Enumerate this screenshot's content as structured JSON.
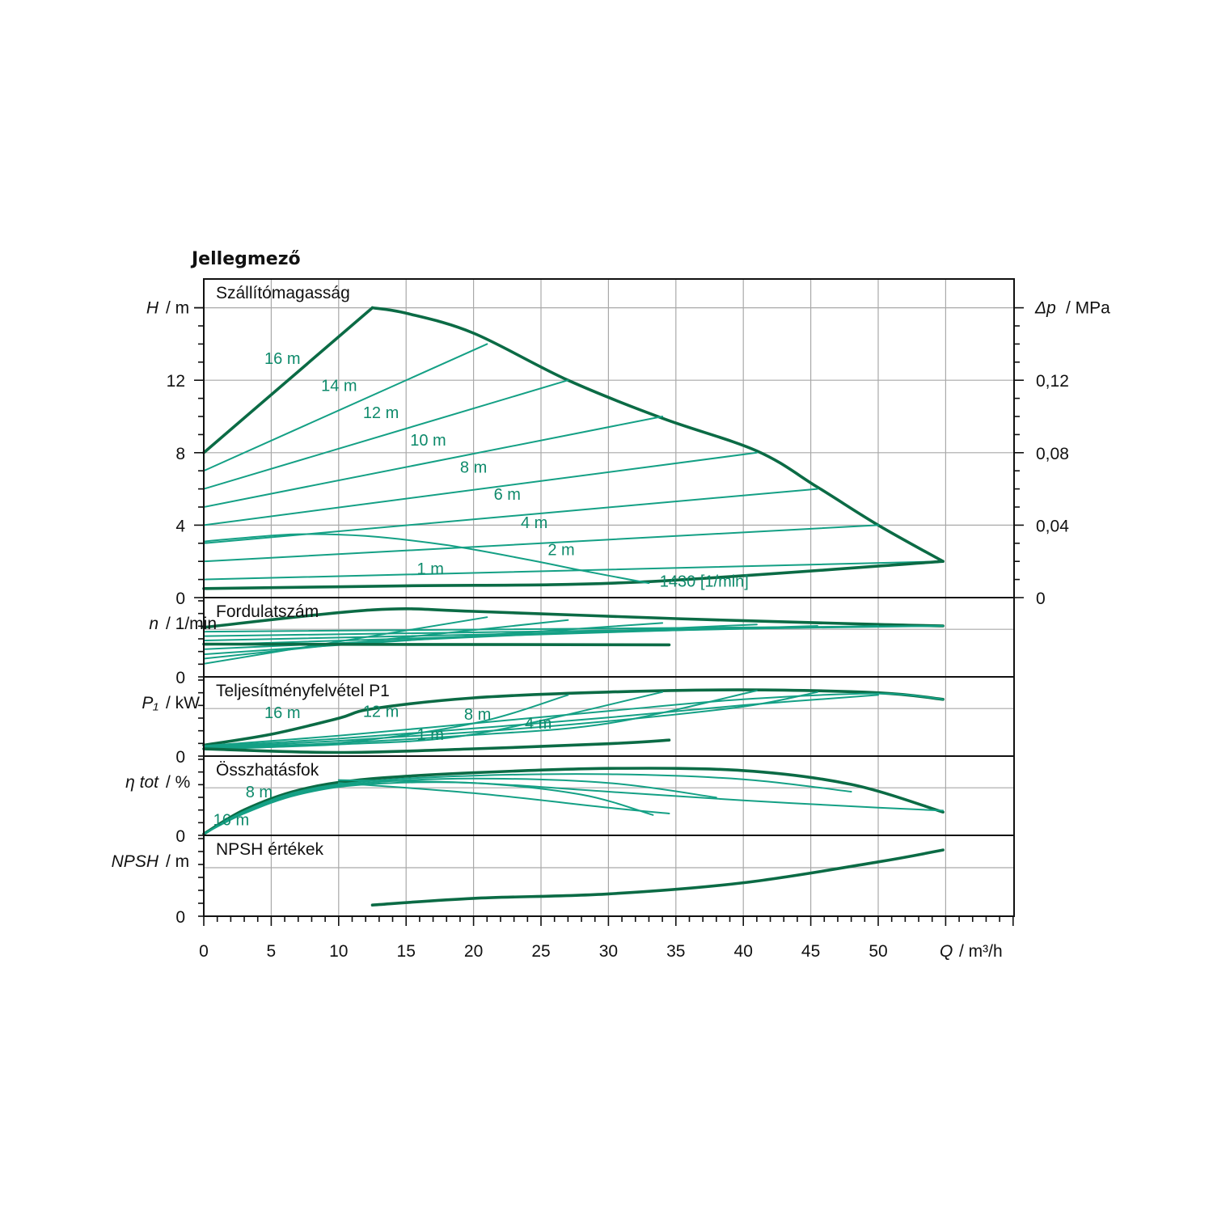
{
  "title": "Jellegmező",
  "colors": {
    "curve_thin": "#14a085",
    "curve_thick": "#0b6b45",
    "label": "#0e8a6b",
    "grid": "#a9a9a9"
  },
  "x_axis": {
    "label_var": "Q",
    "label_unit": "/ m³/h",
    "ticks": [
      "0",
      "5",
      "10",
      "15",
      "20",
      "25",
      "30",
      "35",
      "40",
      "45",
      "50"
    ],
    "xlim": [
      0,
      60
    ]
  },
  "chart_data": [
    {
      "type": "line",
      "title": "Szállítómagasság",
      "ylabel_var": "H",
      "ylabel_unit": "/ m",
      "y2label_var": "Δp",
      "y2label_unit": "/ MPa",
      "ylim": [
        0,
        17
      ],
      "y_ticks": [
        "0",
        "4",
        "8",
        "12"
      ],
      "y_tick_values": [
        0,
        4,
        8,
        12
      ],
      "y2_ticks": [
        "0",
        "0,04",
        "0,08",
        "0,12"
      ],
      "grid": true,
      "series": [
        {
          "name": "16 m",
          "style": "thick",
          "x": [
            0,
            12.5
          ],
          "y": [
            8,
            16
          ]
        },
        {
          "style": "thick",
          "x": [
            12.5,
            15,
            20,
            27,
            34,
            41,
            45.5,
            50,
            54.8
          ],
          "y": [
            16,
            15.7,
            14.6,
            12.0,
            9.9,
            8.1,
            6.1,
            4.0,
            2.0
          ]
        },
        {
          "name": "14 m",
          "style": "thin",
          "x": [
            0,
            21
          ],
          "y": [
            7,
            14
          ]
        },
        {
          "name": "12 m",
          "style": "thin",
          "x": [
            0,
            27
          ],
          "y": [
            6,
            12
          ]
        },
        {
          "name": "10 m",
          "style": "thin",
          "x": [
            0,
            34
          ],
          "y": [
            5,
            10
          ]
        },
        {
          "name": "8 m",
          "style": "thin",
          "x": [
            0,
            41
          ],
          "y": [
            4,
            8
          ]
        },
        {
          "name": "6 m",
          "style": "thin",
          "x": [
            0,
            45.5
          ],
          "y": [
            3,
            6
          ]
        },
        {
          "name": "4 m",
          "style": "thin",
          "x": [
            0,
            50
          ],
          "y": [
            2,
            4
          ]
        },
        {
          "name": "2 m",
          "style": "thin",
          "x": [
            0,
            54.8
          ],
          "y": [
            1,
            2
          ]
        },
        {
          "name": "1 m",
          "style": "thick",
          "x": [
            0,
            15,
            32,
            54.8
          ],
          "y": [
            0.5,
            0.65,
            0.85,
            2.0
          ]
        },
        {
          "name": "1430 [1/min]",
          "style": "thin",
          "x": [
            0,
            3,
            7,
            12,
            18,
            24,
            28,
            33
          ],
          "y": [
            3.1,
            3.3,
            3.5,
            3.4,
            2.9,
            2.1,
            1.5,
            0.8
          ]
        }
      ],
      "labels": [
        {
          "text": "16 m",
          "x": 4.5,
          "y": 12.9
        },
        {
          "text": "14 m",
          "x": 8.7,
          "y": 11.4
        },
        {
          "text": "12 m",
          "x": 11.8,
          "y": 9.9
        },
        {
          "text": "10 m",
          "x": 15.3,
          "y": 8.4
        },
        {
          "text": "8 m",
          "x": 19.0,
          "y": 6.9
        },
        {
          "text": "6 m",
          "x": 21.5,
          "y": 5.4
        },
        {
          "text": "4 m",
          "x": 23.5,
          "y": 3.85
        },
        {
          "text": "2 m",
          "x": 25.5,
          "y": 2.35
        },
        {
          "text": "1 m",
          "x": 15.8,
          "y": 1.3
        },
        {
          "text": "1430 [1/min]",
          "x": 33.8,
          "y": 0.6
        }
      ]
    },
    {
      "type": "line",
      "title": "Fordulatszám",
      "ylabel_var": "n",
      "ylabel_unit": "/ 1/min",
      "ylim": [
        0,
        1.0
      ],
      "y_ticks": [
        "0"
      ],
      "y_tick_values": [
        0
      ],
      "grid": true,
      "series": [
        {
          "style": "thick",
          "x": [
            0,
            12.5,
            20,
            35,
            50,
            54.8
          ],
          "y": [
            0.68,
            0.92,
            0.9,
            0.8,
            0.72,
            0.7
          ]
        },
        {
          "style": "thin",
          "x": [
            0,
            54.8
          ],
          "y": [
            0.62,
            0.7
          ]
        },
        {
          "style": "thin",
          "x": [
            0,
            54.8
          ],
          "y": [
            0.56,
            0.7
          ]
        },
        {
          "style": "thin",
          "x": [
            0,
            50
          ],
          "y": [
            0.5,
            0.7
          ]
        },
        {
          "style": "thin",
          "x": [
            0,
            45.5
          ],
          "y": [
            0.44,
            0.7
          ]
        },
        {
          "style": "thin",
          "x": [
            0,
            41
          ],
          "y": [
            0.38,
            0.72
          ]
        },
        {
          "style": "thin",
          "x": [
            0,
            34
          ],
          "y": [
            0.31,
            0.74
          ]
        },
        {
          "style": "thin",
          "x": [
            0,
            27
          ],
          "y": [
            0.25,
            0.78
          ]
        },
        {
          "style": "thin",
          "x": [
            0,
            21
          ],
          "y": [
            0.18,
            0.82
          ]
        },
        {
          "style": "thick",
          "x": [
            0,
            34.5
          ],
          "y": [
            0.45,
            0.44
          ]
        }
      ]
    },
    {
      "type": "line",
      "title": "Teljesítményfelvétel P1",
      "ylabel_var": "P₁",
      "ylabel_unit": "/ kW",
      "ylim": [
        0,
        1.0
      ],
      "y_ticks": [
        "0"
      ],
      "y_tick_values": [
        0
      ],
      "grid": true,
      "series": [
        {
          "style": "thick",
          "x": [
            0,
            5,
            10,
            12.5,
            20,
            30,
            40,
            50,
            54.8
          ],
          "y": [
            0.15,
            0.3,
            0.52,
            0.65,
            0.8,
            0.88,
            0.91,
            0.87,
            0.78
          ]
        },
        {
          "style": "thin",
          "x": [
            0,
            10,
            20,
            30,
            40,
            50,
            54.8
          ],
          "y": [
            0.14,
            0.28,
            0.45,
            0.62,
            0.78,
            0.86,
            0.78
          ]
        },
        {
          "style": "thin",
          "x": [
            0,
            10,
            20,
            30,
            40,
            50
          ],
          "y": [
            0.13,
            0.24,
            0.38,
            0.53,
            0.7,
            0.84
          ]
        },
        {
          "style": "thin",
          "x": [
            0,
            10,
            20,
            30,
            40,
            45.5
          ],
          "y": [
            0.12,
            0.21,
            0.33,
            0.48,
            0.68,
            0.88
          ]
        },
        {
          "style": "thin",
          "x": [
            0,
            10,
            20,
            30,
            41
          ],
          "y": [
            0.11,
            0.18,
            0.29,
            0.45,
            0.9
          ]
        },
        {
          "style": "thin",
          "x": [
            0,
            10,
            20,
            34
          ],
          "y": [
            0.1,
            0.16,
            0.3,
            0.88
          ]
        },
        {
          "style": "thin",
          "x": [
            0,
            10,
            20,
            27
          ],
          "y": [
            0.09,
            0.18,
            0.45,
            0.84
          ]
        },
        {
          "style": "thick",
          "x": [
            0,
            10,
            20,
            30,
            34.5
          ],
          "y": [
            0.1,
            0.05,
            0.1,
            0.17,
            0.22
          ]
        }
      ],
      "labels": [
        {
          "text": "16 m",
          "x": 4.5,
          "y": 0.52
        },
        {
          "text": "12 m",
          "x": 11.8,
          "y": 0.54
        },
        {
          "text": "8 m",
          "x": 19.3,
          "y": 0.5
        },
        {
          "text": "4 m",
          "x": 23.8,
          "y": 0.38
        },
        {
          "text": "1 m",
          "x": 15.8,
          "y": 0.22
        }
      ]
    },
    {
      "type": "line",
      "title": "Összhatásfok",
      "ylabel_var": "η tot",
      "ylabel_unit": "/ %",
      "ylim": [
        0,
        1.0
      ],
      "y_ticks": [
        "0"
      ],
      "y_tick_values": [
        0
      ],
      "grid": true,
      "series": [
        {
          "style": "thick",
          "x": [
            0,
            3,
            7,
            12,
            20,
            30,
            40,
            48,
            54.8
          ],
          "y": [
            0.02,
            0.35,
            0.62,
            0.77,
            0.86,
            0.92,
            0.89,
            0.7,
            0.32
          ]
        },
        {
          "style": "thin",
          "x": [
            0,
            3,
            7,
            12,
            20,
            30,
            40,
            48
          ],
          "y": [
            0.02,
            0.33,
            0.6,
            0.74,
            0.82,
            0.84,
            0.77,
            0.6
          ]
        },
        {
          "style": "thin",
          "x": [
            0,
            3,
            7,
            12,
            20,
            30,
            38
          ],
          "y": [
            0.02,
            0.32,
            0.58,
            0.72,
            0.78,
            0.72,
            0.52
          ]
        },
        {
          "style": "thin",
          "x": [
            0,
            3,
            7,
            12,
            20,
            28,
            33.3
          ],
          "y": [
            0.02,
            0.3,
            0.56,
            0.7,
            0.72,
            0.56,
            0.28
          ]
        },
        {
          "style": "thin",
          "x": [
            10,
            20,
            30,
            40,
            50,
            54.8
          ],
          "y": [
            0.76,
            0.72,
            0.6,
            0.48,
            0.38,
            0.34
          ]
        },
        {
          "style": "thin",
          "x": [
            10,
            20,
            30,
            34.5
          ],
          "y": [
            0.72,
            0.58,
            0.38,
            0.3
          ]
        }
      ],
      "labels": [
        {
          "text": "16 m",
          "x": 0.7,
          "y": 0.14
        },
        {
          "text": "8 m",
          "x": 3.1,
          "y": 0.52
        }
      ]
    },
    {
      "type": "line",
      "title": "NPSH értékek",
      "ylabel_var": "NPSH",
      "ylabel_unit": "/ m",
      "ylim": [
        0,
        1.0
      ],
      "y_ticks": [
        "0"
      ],
      "y_tick_values": [
        0
      ],
      "grid": true,
      "series": [
        {
          "style": "thick",
          "x": [
            12.5,
            20,
            30,
            40,
            50,
            54.8
          ],
          "y": [
            0.15,
            0.24,
            0.3,
            0.45,
            0.73,
            0.89
          ]
        }
      ]
    }
  ]
}
